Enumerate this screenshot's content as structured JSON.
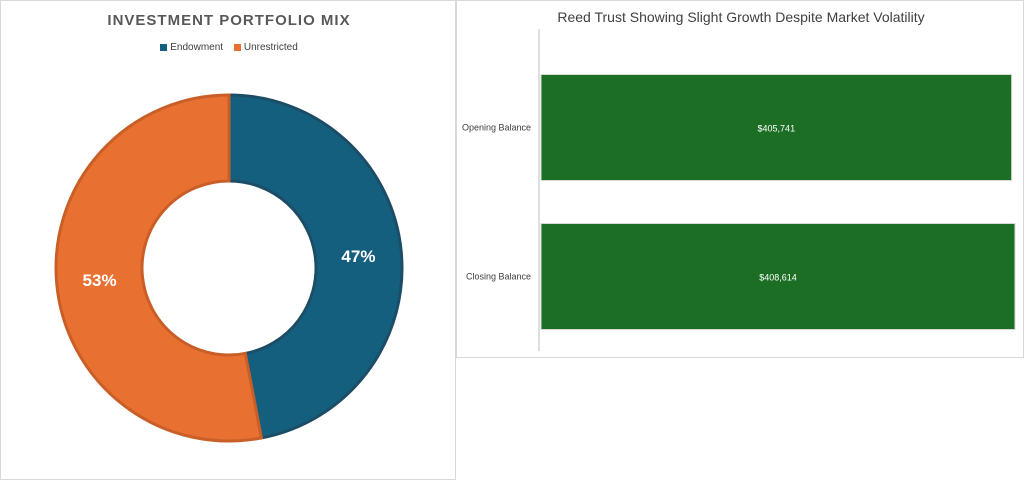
{
  "colors": {
    "endowment": "#155f7e",
    "unrestricted": "#e87132",
    "bar": "#1b6e24",
    "axis": "#bfbfbf"
  },
  "chart_data": [
    {
      "type": "pie",
      "title": "INVESTMENT PORTFOLIO MIX",
      "legend_position": "top",
      "hole": true,
      "categories": [
        "Endowment",
        "Unrestricted"
      ],
      "values": [
        47,
        53
      ],
      "labels": [
        "47%",
        "53%"
      ]
    },
    {
      "type": "bar",
      "orientation": "horizontal",
      "title": "Reed Trust Showing Slight Growth Despite Market Volatility",
      "categories": [
        "Opening Balance",
        "Closing Balance"
      ],
      "values": [
        405741,
        408614
      ],
      "labels": [
        "$405,741",
        "$408,614"
      ],
      "xlim": [
        0,
        408614
      ],
      "grid": false
    }
  ]
}
